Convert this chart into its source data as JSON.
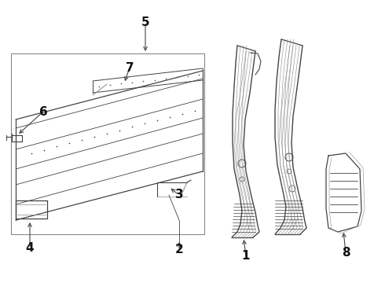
{
  "bg_color": "#ffffff",
  "line_color": "#444444",
  "label_color": "#111111",
  "fig_width": 4.9,
  "fig_height": 3.6,
  "dpi": 100,
  "font_size": 11
}
